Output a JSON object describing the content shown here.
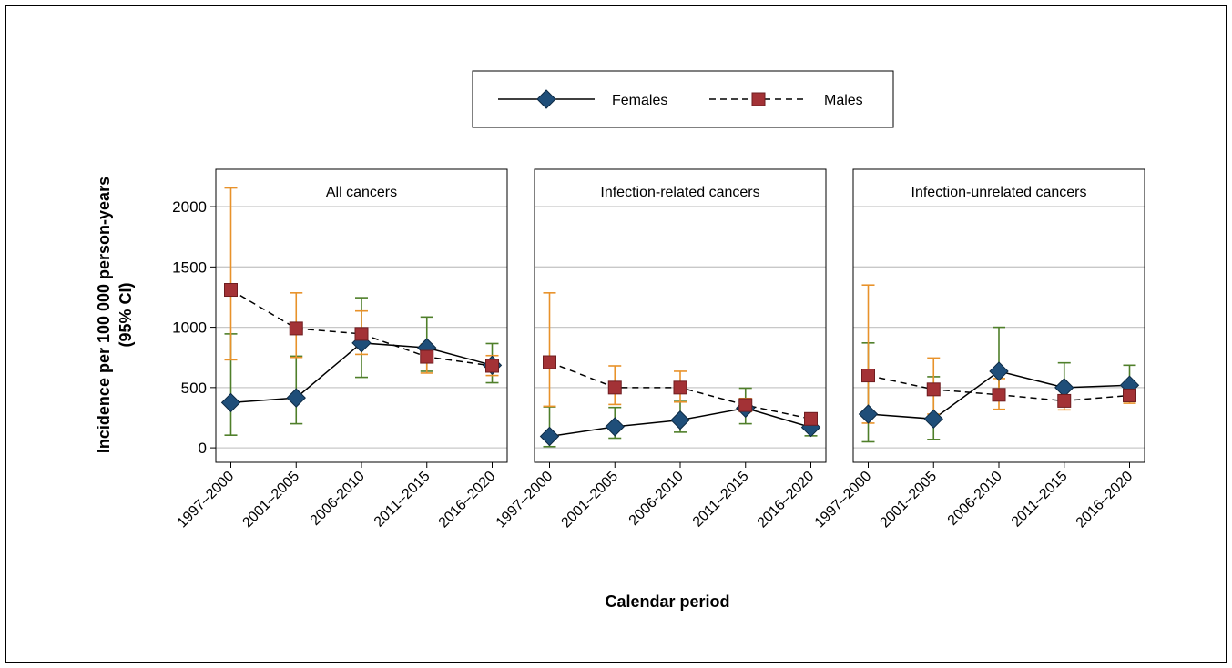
{
  "chart_data": {
    "type": "line",
    "ylabel": [
      "Incidence per 100 000 person-years",
      "(95% CI)"
    ],
    "xlabel": "Calendar period",
    "categories": [
      "1997–2000",
      "2001–2005",
      "2006-2010",
      "2011–2015",
      "2016–2020"
    ],
    "yticks": [
      0,
      500,
      1000,
      1500,
      2000
    ],
    "ylim": [
      -120,
      2310
    ],
    "grid": true,
    "legend": {
      "position": "top-center",
      "entries": [
        {
          "name": "Females",
          "line": "solid",
          "marker": "diamond",
          "marker_color": "#1f4e79",
          "ci_color": "#4f7f2a"
        },
        {
          "name": "Males",
          "line": "dashed",
          "marker": "square",
          "marker_color": "#a33236",
          "ci_color": "#e8922a"
        }
      ]
    },
    "panels": [
      {
        "title": "All cancers",
        "series": [
          {
            "name": "Females",
            "values": [
              375,
              415,
              870,
              830,
              685
            ],
            "ci_low": [
              105,
              200,
              585,
              635,
              540
            ],
            "ci_high": [
              945,
              760,
              1245,
              1085,
              865
            ]
          },
          {
            "name": "Males",
            "values": [
              1310,
              990,
              945,
              755,
              680
            ],
            "ci_low": [
              730,
              750,
              775,
              620,
              600
            ],
            "ci_high": [
              2155,
              1285,
              1135,
              860,
              765
            ]
          }
        ]
      },
      {
        "title": "Infection-related cancers",
        "series": [
          {
            "name": "Females",
            "values": [
              95,
              175,
              230,
              330,
              170
            ],
            "ci_low": [
              10,
              80,
              130,
              200,
              100
            ],
            "ci_high": [
              340,
              335,
              385,
              495,
              275
            ]
          },
          {
            "name": "Males",
            "values": [
              710,
              500,
              500,
              355,
              240
            ],
            "ci_low": [
              345,
              360,
              380,
              300,
              190
            ],
            "ci_high": [
              1285,
              680,
              635,
              410,
              275
            ]
          }
        ]
      },
      {
        "title": "Infection-unrelated cancers",
        "series": [
          {
            "name": "Females",
            "values": [
              280,
              240,
              635,
              500,
              520
            ],
            "ci_low": [
              50,
              70,
              400,
              350,
              385
            ],
            "ci_high": [
              870,
              590,
              1000,
              705,
              685
            ]
          },
          {
            "name": "Males",
            "values": [
              600,
              485,
              440,
              390,
              435
            ],
            "ci_low": [
              205,
              280,
              320,
              315,
              370
            ],
            "ci_high": [
              1350,
              745,
              575,
              480,
              505
            ]
          }
        ]
      }
    ]
  }
}
